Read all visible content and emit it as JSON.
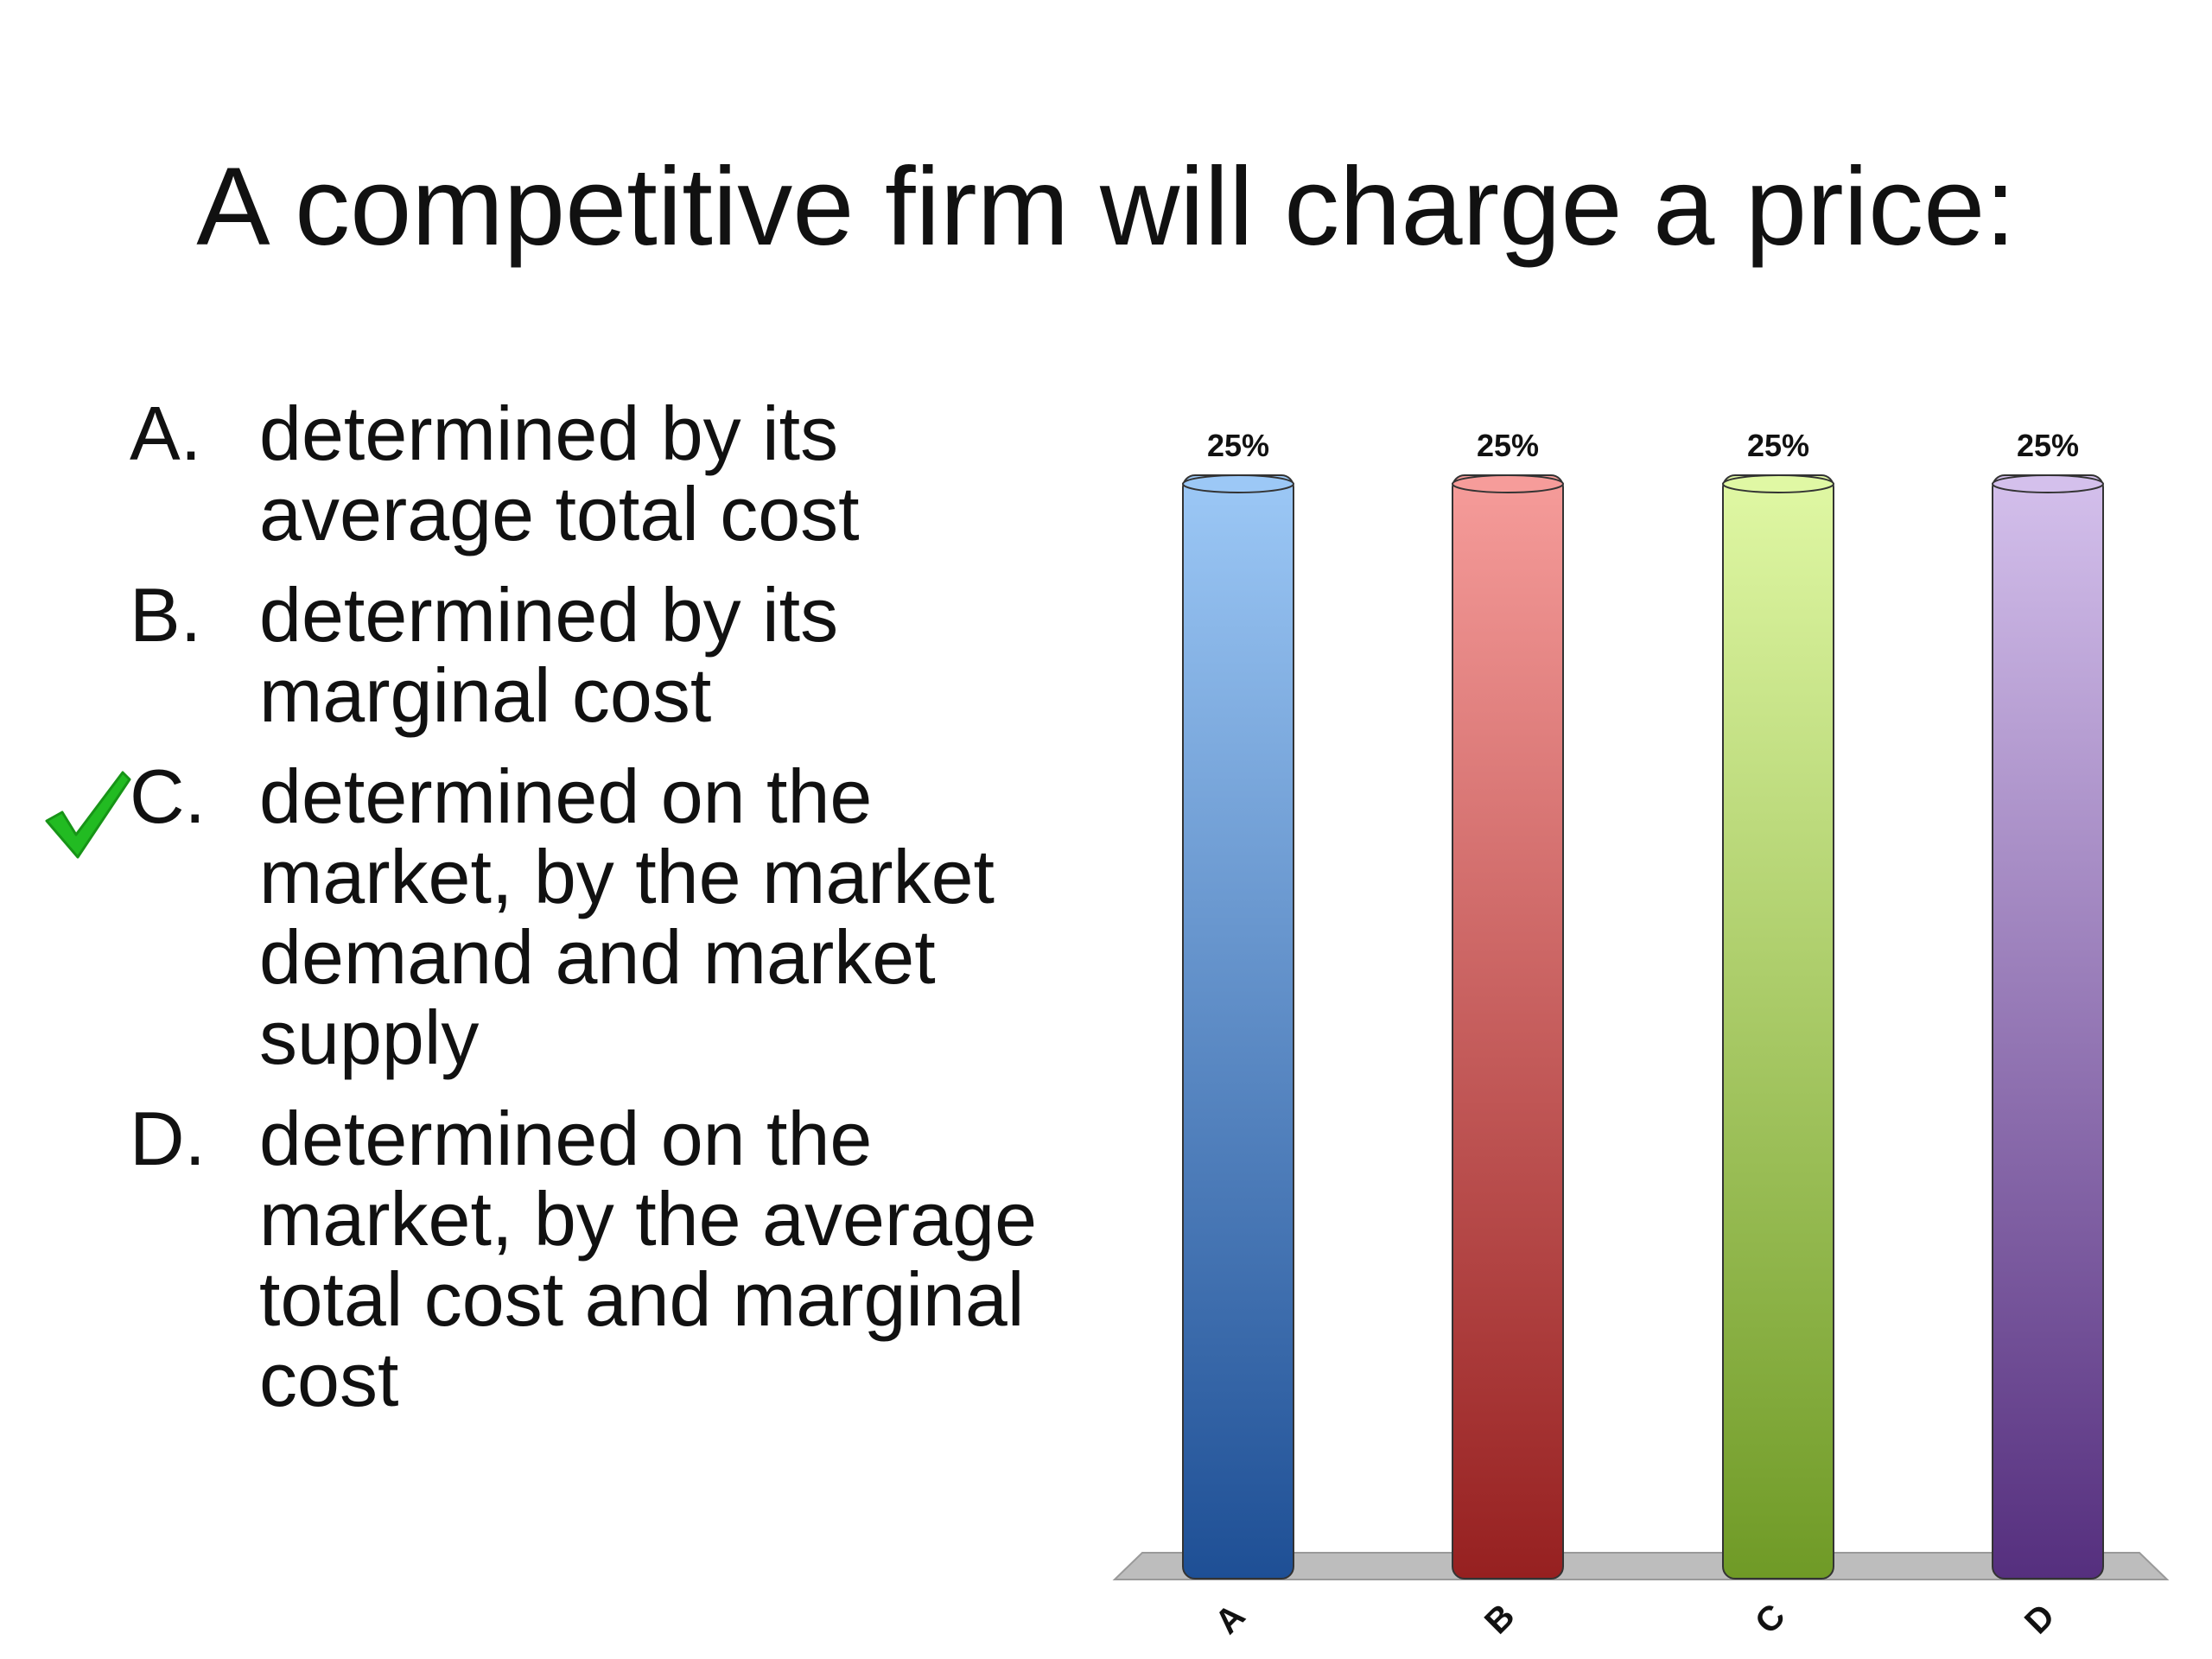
{
  "slide": {
    "title": "A competitive firm will charge a price:",
    "correct_option": "C"
  },
  "options": [
    {
      "letter": "A.",
      "text": "determined by its average total cost"
    },
    {
      "letter": "B.",
      "text": "determined by its marginal cost"
    },
    {
      "letter": "C.",
      "text": "determined on the market, by the market demand and market supply"
    },
    {
      "letter": "D.",
      "text": "determined on the market, by the average total cost and marginal cost"
    }
  ],
  "check_icon": {
    "name": "checkmark-icon",
    "color": "#22bb22"
  },
  "chart_data": {
    "type": "bar",
    "categories": [
      "A",
      "B",
      "C",
      "D"
    ],
    "values": [
      25,
      25,
      25,
      25
    ],
    "value_labels": [
      "25%",
      "25%",
      "25%",
      "25%"
    ],
    "title": "",
    "xlabel": "",
    "ylabel": "",
    "ylim": [
      0,
      25
    ],
    "grid": false,
    "colors": [
      {
        "top": "#9cc8f6",
        "bottom": "#1e4f95"
      },
      {
        "top": "#f69c9a",
        "bottom": "#962020"
      },
      {
        "top": "#e0f8a4",
        "bottom": "#6f9a26"
      },
      {
        "top": "#d4c0ec",
        "bottom": "#552f7e"
      }
    ]
  }
}
